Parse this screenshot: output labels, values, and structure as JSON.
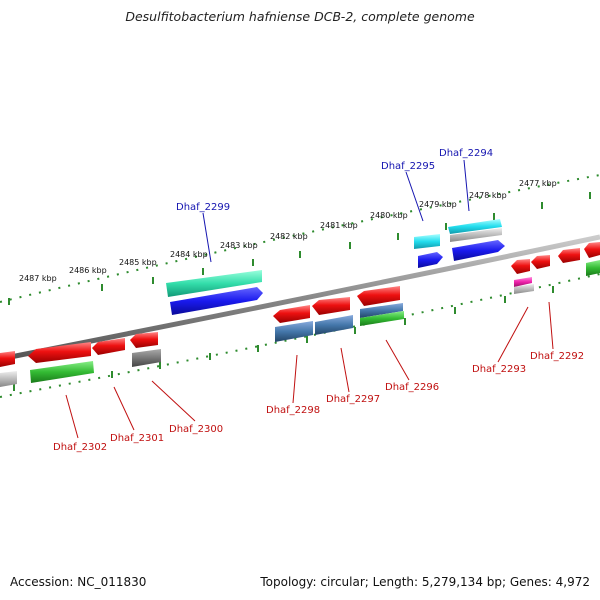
{
  "title": "Desulfitobacterium hafniense DCB-2, complete genome",
  "accession": "Accession: NC_011830",
  "topology": "Topology: circular; Length: 5,279,134 bp; Genes: 4,972",
  "colors": {
    "red": "#ee1111",
    "green": "#33bb33",
    "teal": "#33ddaa",
    "blue": "#1a1aee",
    "cyan": "#22ddee",
    "steel": "#4477aa",
    "gray": "#777777",
    "lightgray": "#bbbbbb",
    "magenta": "#ee22aa",
    "tick": "#2e8b2e",
    "backbone": "#888888",
    "label_top": "#1515b0",
    "label_bottom": "#c01010"
  },
  "tick_labels": [
    "2477 kbp",
    "2478 kbp",
    "2479 kbp",
    "2480 kbp",
    "2481 kbp",
    "2482 kbp",
    "2483 kbp",
    "2484 kbp",
    "2485 kbp",
    "2486 kbp",
    "2487 kbp"
  ],
  "gene_labels_top": [
    "Dhaf_2294",
    "Dhaf_2295",
    "Dhaf_2299"
  ],
  "gene_labels_bottom": [
    "Dhaf_2292",
    "Dhaf_2293",
    "Dhaf_2296",
    "Dhaf_2297",
    "Dhaf_2298",
    "Dhaf_2300",
    "Dhaf_2301",
    "Dhaf_2302"
  ]
}
